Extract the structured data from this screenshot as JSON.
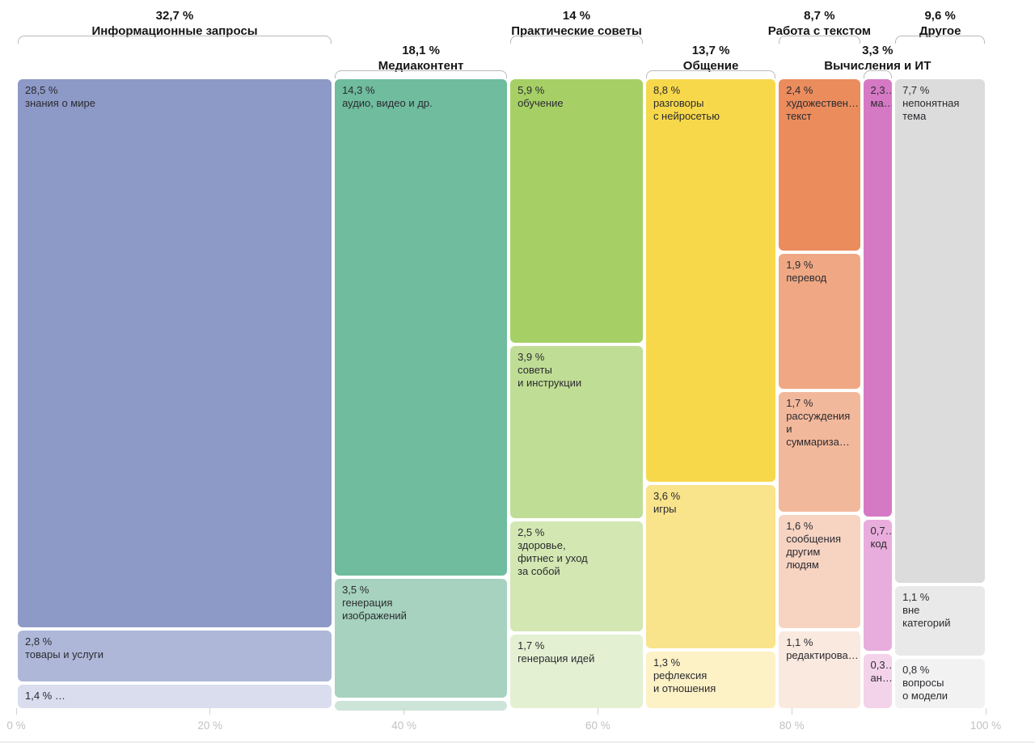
{
  "page": {
    "background": "#ffffff"
  },
  "chart_data": {
    "type": "marimekko",
    "title": "",
    "unit": "%",
    "axis": {
      "ticks": [
        "0 %",
        "20 %",
        "40 %",
        "60 %",
        "80 %",
        "100 %"
      ],
      "tick_values": [
        0,
        20,
        40,
        60,
        80,
        100
      ],
      "range": [
        0,
        100
      ],
      "grid": false
    },
    "groups": [
      {
        "name": "Информационные запросы",
        "pct_label": "32,7 %",
        "value": 32.7,
        "header_row": "top",
        "blocks": [
          {
            "pct": "28,5 %",
            "label": "знания о мире",
            "value": 28.5,
            "color": "#8d99c7"
          },
          {
            "pct": "2,8 %",
            "label": "товары и услуги",
            "value": 2.8,
            "color": "#aeb7d8"
          },
          {
            "pct": "1,4 % …",
            "label": "",
            "value": 1.4,
            "color": "#d9ddee"
          }
        ]
      },
      {
        "name": "Медиаконтент",
        "pct_label": "18,1 %",
        "value": 18.1,
        "header_row": "bottom",
        "blocks": [
          {
            "pct": "14,3 %",
            "label": "аудио, видео и др.",
            "value": 14.3,
            "color": "#6fbc9e"
          },
          {
            "pct": "3,5 %",
            "label": "генерация\nизображений",
            "value": 3.5,
            "color": "#a6d2bf"
          },
          {
            "pct": "",
            "label": "",
            "value": 0.3,
            "color": "#cde4d8"
          }
        ]
      },
      {
        "name": "Практические советы",
        "pct_label": "14 %",
        "value": 14,
        "header_row": "top",
        "blocks": [
          {
            "pct": "5,9 %",
            "label": "обучение",
            "value": 5.9,
            "color": "#a6d066"
          },
          {
            "pct": "3,9 %",
            "label": "советы\nи инструкции",
            "value": 3.9,
            "color": "#c0dd95"
          },
          {
            "pct": "2,5 %",
            "label": "здоровье,\nфитнес и уход\nза собой",
            "value": 2.5,
            "color": "#d2e7b2"
          },
          {
            "pct": "1,7 %",
            "label": "генерация идей",
            "value": 1.7,
            "color": "#e4f0d2"
          }
        ]
      },
      {
        "name": "Общение",
        "pct_label": "13,7 %",
        "value": 13.7,
        "header_row": "bottom",
        "blocks": [
          {
            "pct": "8,8 %",
            "label": "разговоры\nс нейросетью",
            "value": 8.8,
            "color": "#f7d84b"
          },
          {
            "pct": "3,6 %",
            "label": "игры",
            "value": 3.6,
            "color": "#f9e38b"
          },
          {
            "pct": "1,3 %",
            "label": "рефлексия\nи отношения",
            "value": 1.3,
            "color": "#fdf1c6"
          }
        ]
      },
      {
        "name": "Работа с текстом",
        "pct_label": "8,7 %",
        "value": 8.7,
        "header_row": "top",
        "blocks": [
          {
            "pct": "2,4 %",
            "label": "художествен…\nтекст",
            "value": 2.4,
            "color": "#eb8c5d"
          },
          {
            "pct": "1,9 %",
            "label": "перевод",
            "value": 1.9,
            "color": "#f0a884"
          },
          {
            "pct": "1,7 %",
            "label": "рассуждения\nи суммариза…",
            "value": 1.7,
            "color": "#f2b89b"
          },
          {
            "pct": "1,6 %",
            "label": "сообщения\nдругим\nлюдям",
            "value": 1.6,
            "color": "#f7d3c2"
          },
          {
            "pct": "1,1 %",
            "label": "редактирова…",
            "value": 1.1,
            "color": "#fae9df"
          }
        ]
      },
      {
        "name": "Вычисления и ИТ",
        "pct_label": "3,3 %",
        "value": 3.3,
        "header_row": "bottom",
        "blocks": [
          {
            "pct": "2,3…",
            "label": "ма…",
            "value": 2.3,
            "color": "#d679c5"
          },
          {
            "pct": "0,7…",
            "label": "код",
            "value": 0.7,
            "color": "#e9addd"
          },
          {
            "pct": "0,3…",
            "label": "ан…",
            "value": 0.3,
            "color": "#f3d3ea"
          }
        ]
      },
      {
        "name": "Другое",
        "pct_label": "9,6 %",
        "value": 9.6,
        "header_row": "top",
        "blocks": [
          {
            "pct": "7,7 %",
            "label": "непонятная\nтема",
            "value": 7.7,
            "color": "#dcdcdc"
          },
          {
            "pct": "1,1 %",
            "label": "вне\nкатегорий",
            "value": 1.1,
            "color": "#e9e9e9"
          },
          {
            "pct": "0,8 %",
            "label": "вопросы\nо модели",
            "value": 0.8,
            "color": "#f2f2f2"
          }
        ]
      }
    ]
  }
}
